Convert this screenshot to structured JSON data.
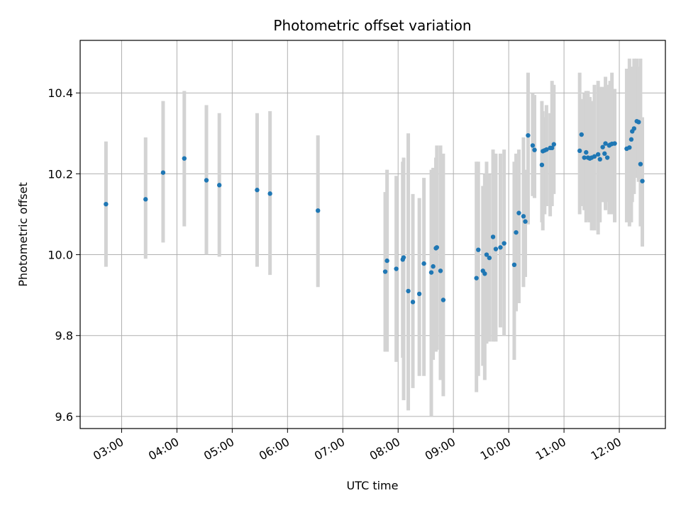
{
  "chart_data": {
    "type": "scatter",
    "title": "Photometric offset variation",
    "xlabel": "UTC time",
    "ylabel": "Photometric offset",
    "xlim": [
      "02:15",
      "12:50"
    ],
    "ylim": [
      9.57,
      10.53
    ],
    "grid": true,
    "x_ticks": [
      "03:00",
      "04:00",
      "05:00",
      "06:00",
      "07:00",
      "08:00",
      "09:00",
      "10:00",
      "11:00",
      "12:00"
    ],
    "y_ticks": [
      9.6,
      9.8,
      10.0,
      10.2,
      10.4
    ],
    "y_tick_labels": [
      "9.6",
      "9.8",
      "10.0",
      "10.2",
      "10.4"
    ],
    "colors": {
      "point": "#1f77b4",
      "errorbar": "#d3d3d3",
      "grid": "#b0b0b0"
    },
    "series": [
      {
        "x_time": [
          "02:43",
          "03:26",
          "03:45",
          "04:08",
          "04:32",
          "04:46",
          "05:27",
          "05:41",
          "06:33",
          "07:46",
          "07:48",
          "07:58",
          "08:05",
          "08:06",
          "08:11",
          "08:16",
          "08:23",
          "08:28",
          "08:36",
          "08:38",
          "08:41",
          "08:42",
          "08:46",
          "08:49",
          "09:25",
          "09:27",
          "09:32",
          "09:34",
          "09:36",
          "09:39",
          "09:43",
          "09:46",
          "09:51",
          "09:55",
          "10:06",
          "10:08",
          "10:11",
          "10:16",
          "10:18",
          "10:21",
          "10:26",
          "10:28",
          "10:36",
          "10:37",
          "10:39",
          "10:41",
          "10:45",
          "10:47",
          "10:49",
          "11:17",
          "11:19",
          "11:22",
          "11:24",
          "11:26",
          "11:28",
          "11:30",
          "11:33",
          "11:37",
          "11:39",
          "11:42",
          "11:44",
          "11:45",
          "11:47",
          "11:49",
          "11:50",
          "11:52",
          "11:55",
          "12:08",
          "12:11",
          "12:13",
          "12:14",
          "12:16",
          "12:19",
          "12:21",
          "12:23",
          "12:25"
        ],
        "y": [
          10.125,
          10.137,
          10.203,
          10.238,
          10.184,
          10.172,
          10.16,
          10.151,
          10.109,
          9.958,
          9.985,
          9.965,
          9.988,
          9.993,
          9.91,
          9.883,
          9.903,
          9.978,
          9.956,
          9.971,
          10.016,
          10.018,
          9.96,
          9.888,
          9.942,
          10.012,
          9.96,
          9.953,
          10.0,
          9.992,
          10.044,
          10.014,
          10.018,
          10.028,
          9.975,
          10.055,
          10.103,
          10.095,
          10.082,
          10.295,
          10.27,
          10.259,
          10.222,
          10.256,
          10.258,
          10.26,
          10.264,
          10.264,
          10.273,
          10.257,
          10.297,
          10.24,
          10.253,
          10.24,
          10.238,
          10.24,
          10.243,
          10.248,
          10.236,
          10.266,
          10.25,
          10.275,
          10.24,
          10.27,
          10.272,
          10.274,
          10.275,
          10.262,
          10.265,
          10.285,
          10.305,
          10.312,
          10.33,
          10.328,
          10.224,
          10.182
        ],
        "y_low": [
          9.97,
          9.99,
          10.03,
          10.07,
          10.0,
          9.995,
          9.97,
          9.95,
          9.92,
          9.76,
          9.76,
          9.735,
          9.745,
          9.64,
          9.615,
          9.67,
          9.7,
          9.7,
          9.6,
          9.74,
          9.76,
          9.765,
          9.69,
          9.65,
          9.66,
          9.7,
          9.725,
          9.69,
          9.78,
          9.785,
          9.785,
          9.785,
          9.82,
          9.8,
          9.74,
          9.86,
          9.88,
          9.92,
          9.945,
          10.075,
          10.145,
          10.14,
          10.08,
          10.06,
          10.1,
          10.12,
          10.095,
          10.12,
          10.15,
          10.1,
          10.12,
          10.11,
          10.08,
          10.085,
          10.08,
          10.06,
          10.06,
          10.05,
          10.08,
          10.13,
          10.13,
          10.11,
          10.13,
          10.1,
          10.14,
          10.1,
          10.08,
          10.08,
          10.07,
          10.08,
          10.13,
          10.15,
          10.19,
          10.18,
          10.07,
          10.02
        ],
        "y_high": [
          10.28,
          10.29,
          10.38,
          10.405,
          10.37,
          10.35,
          10.35,
          10.355,
          10.295,
          10.155,
          10.21,
          10.195,
          10.23,
          10.24,
          10.3,
          10.15,
          10.14,
          10.19,
          10.21,
          10.215,
          10.24,
          10.27,
          10.27,
          10.25,
          10.23,
          10.23,
          10.17,
          10.2,
          10.23,
          10.2,
          10.26,
          10.25,
          10.25,
          10.26,
          10.23,
          10.25,
          10.26,
          10.29,
          10.21,
          10.45,
          10.4,
          10.395,
          10.38,
          10.355,
          10.34,
          10.37,
          10.35,
          10.43,
          10.42,
          10.45,
          10.385,
          10.4,
          10.405,
          10.405,
          10.39,
          10.38,
          10.42,
          10.43,
          10.415,
          10.415,
          10.4,
          10.44,
          10.42,
          10.41,
          10.43,
          10.45,
          10.41,
          10.46,
          10.485,
          10.465,
          10.46,
          10.485,
          10.485,
          10.465,
          10.485,
          10.34
        ]
      }
    ]
  }
}
